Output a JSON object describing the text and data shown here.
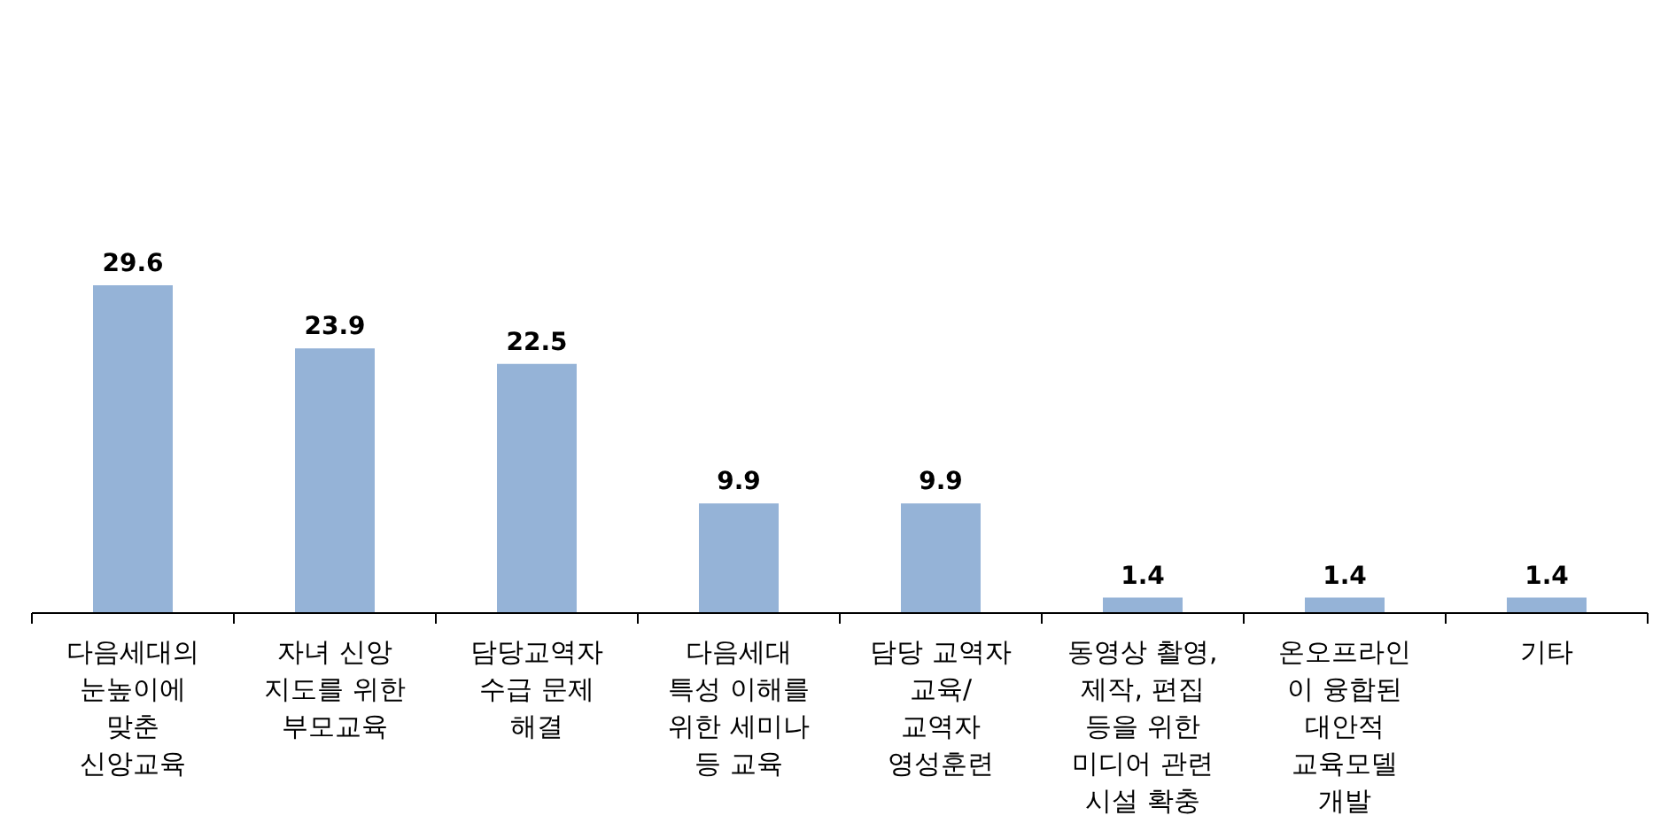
{
  "chart_data": {
    "type": "bar",
    "categories": [
      "다음세대의\n눈높이에\n맞춘\n신앙교육",
      "자녀 신앙\n지도를 위한\n부모교육",
      "담당교역자\n수급 문제\n해결",
      "다음세대\n특성 이해를\n위한 세미나\n등 교육",
      "담당 교역자\n교육/\n교역자\n영성훈련",
      "동영상 촬영,\n제작, 편집\n등을 위한\n미디어 관련\n시설 확충",
      "온오프라인\n이 융합된\n대안적\n교육모델\n개발",
      "기타"
    ],
    "values": [
      29.6,
      23.9,
      22.5,
      9.9,
      9.9,
      1.4,
      1.4,
      1.4
    ],
    "color": "#95b3d7",
    "data_labels": true
  }
}
